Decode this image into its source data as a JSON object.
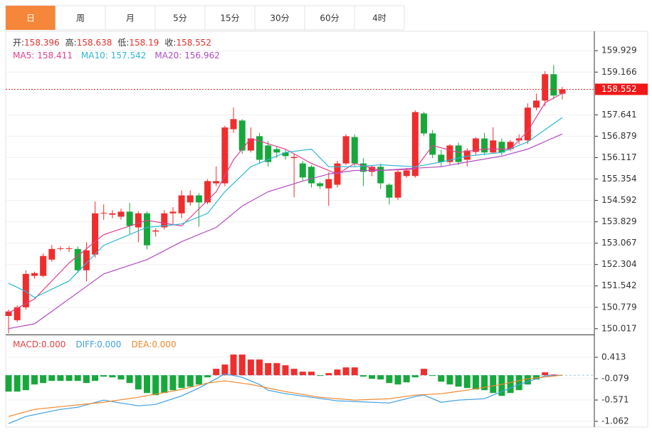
{
  "tabs": [
    "日",
    "周",
    "月",
    "5分",
    "15分",
    "30分",
    "60分",
    "4时"
  ],
  "active_tab": 0,
  "chart_data": [
    {
      "type": "candlestick",
      "ohlc_labels": [
        "开:",
        "高:",
        "低:",
        "收:"
      ],
      "open": [
        150.47,
        150.32,
        150.78,
        151.9,
        151.9,
        152.48,
        152.86,
        152.86,
        152.86,
        152.1,
        152.66,
        154.13,
        154.08,
        154.01,
        154.19,
        153.63,
        154.13,
        153.48,
        153.63,
        154.13,
        154.13,
        154.52,
        154.77,
        154.52,
        155.2,
        155.2,
        157.13,
        157.44,
        156.37,
        156.88,
        156.55,
        156.42,
        156.3,
        156.1,
        155.91,
        155.79,
        155.2,
        155.02,
        155.15,
        155.91,
        156.85,
        155.91,
        155.61,
        155.79,
        155.15,
        154.69,
        155.46,
        155.46,
        157.69,
        156.98,
        156.22,
        155.96,
        156.55,
        156.04,
        156.32,
        156.8,
        156.3,
        156.68,
        156.42,
        156.73,
        156.73,
        157.9,
        158.15,
        159.09,
        158.396
      ],
      "high": [
        150.7,
        150.85,
        152.1,
        152.05,
        152.7,
        153.0,
        152.95,
        152.95,
        152.95,
        153.1,
        154.55,
        154.45,
        154.25,
        154.3,
        154.5,
        154.2,
        154.2,
        153.6,
        154.25,
        154.35,
        154.95,
        154.95,
        154.85,
        155.35,
        155.8,
        157.25,
        157.9,
        157.49,
        157.2,
        157.0,
        156.7,
        156.5,
        156.4,
        156.25,
        156.0,
        155.85,
        155.25,
        155.6,
        156.0,
        156.95,
        156.95,
        156.1,
        155.85,
        155.9,
        155.2,
        155.7,
        155.75,
        157.8,
        157.75,
        157.1,
        156.4,
        156.6,
        156.65,
        156.45,
        156.85,
        157.0,
        157.2,
        156.8,
        156.75,
        156.95,
        158.05,
        158.4,
        159.2,
        159.42,
        158.638
      ],
      "low": [
        149.85,
        150.25,
        150.7,
        151.8,
        151.85,
        152.4,
        152.8,
        152.75,
        152.0,
        151.7,
        152.55,
        153.9,
        153.95,
        153.9,
        153.4,
        153.1,
        152.85,
        153.3,
        153.55,
        153.7,
        153.95,
        154.4,
        153.65,
        154.45,
        155.1,
        155.1,
        157.0,
        156.25,
        156.3,
        155.9,
        155.8,
        156.1,
        156.05,
        154.7,
        155.3,
        155.05,
        155.0,
        154.4,
        155.05,
        155.85,
        155.8,
        155.1,
        155.45,
        155.0,
        154.44,
        154.6,
        155.4,
        155.4,
        156.9,
        156.1,
        155.8,
        155.85,
        155.85,
        155.8,
        156.2,
        156.2,
        156.25,
        156.2,
        156.35,
        156.6,
        156.6,
        157.8,
        157.95,
        158.2,
        158.19
      ],
      "close": [
        150.63,
        150.78,
        151.97,
        152.0,
        152.61,
        152.86,
        152.88,
        152.88,
        152.1,
        152.81,
        154.13,
        154.15,
        154.13,
        154.19,
        153.68,
        154.13,
        152.99,
        153.52,
        154.13,
        154.19,
        154.77,
        154.77,
        154.52,
        155.28,
        155.28,
        157.19,
        157.49,
        156.37,
        156.8,
        156.04,
        155.96,
        156.3,
        156.17,
        156.14,
        155.41,
        155.2,
        155.1,
        155.35,
        155.91,
        156.88,
        155.91,
        155.61,
        155.79,
        155.2,
        154.69,
        155.61,
        155.66,
        157.74,
        156.98,
        156.22,
        155.96,
        156.55,
        155.96,
        156.37,
        156.8,
        156.3,
        156.73,
        156.3,
        156.68,
        156.8,
        157.9,
        158.15,
        159.09,
        158.33,
        158.552
      ],
      "up_color": "#ef2d2d",
      "down_color": "#17a83c",
      "series": [
        {
          "name": "MA5:",
          "color": "#e23f8e",
          "x": [
            0,
            3,
            7,
            11,
            16,
            20,
            24,
            26,
            28,
            32,
            35,
            38,
            40,
            43,
            47,
            49,
            52,
            55,
            58,
            60,
            62,
            64
          ],
          "values": [
            150.58,
            151.08,
            152.36,
            153.37,
            153.88,
            153.68,
            154.9,
            156.04,
            156.8,
            156.42,
            155.91,
            155.53,
            155.91,
            155.66,
            155.71,
            156.55,
            156.3,
            156.42,
            156.42,
            157.06,
            158.07,
            158.411
          ]
        },
        {
          "name": "MA10:",
          "color": "#2db7d6",
          "x": [
            0,
            2,
            3,
            7,
            11,
            16,
            20,
            23,
            25,
            28,
            32,
            35,
            37,
            40,
            43,
            47,
            50,
            53,
            57,
            60,
            64
          ],
          "values": [
            151.64,
            151.34,
            151.13,
            151.72,
            152.99,
            153.63,
            153.75,
            154.13,
            154.9,
            155.79,
            156.3,
            156.42,
            155.79,
            155.79,
            155.86,
            155.79,
            155.96,
            156.17,
            156.3,
            156.68,
            157.542
          ]
        },
        {
          "name": "MA20:",
          "color": "#b24cc4",
          "x": [
            0,
            3,
            7,
            11,
            16,
            20,
            24,
            27,
            30,
            34,
            37,
            40,
            43,
            47,
            50,
            53,
            57,
            60,
            64
          ],
          "values": [
            150.02,
            150.19,
            151.08,
            151.97,
            152.48,
            153.12,
            153.63,
            154.39,
            154.9,
            155.28,
            155.53,
            155.66,
            155.66,
            155.74,
            155.79,
            155.96,
            156.17,
            156.42,
            156.962
          ]
        }
      ],
      "ylim": [
        149.81,
        160.62
      ],
      "yticks": [
        150.017,
        150.779,
        151.542,
        152.304,
        153.067,
        153.829,
        154.592,
        155.354,
        156.117,
        156.879,
        157.641,
        159.166,
        159.929
      ],
      "grid": true,
      "last_price_line": true
    },
    {
      "type": "macd",
      "up_color": "#ef2d2d",
      "down_color": "#17a83c",
      "series": [
        {
          "name": "MACD:",
          "kind": "bar",
          "color": "#e84040",
          "legend_value": {
            "value": 0,
            "label": "0.000"
          },
          "values": [
            -0.377,
            -0.377,
            -0.344,
            -0.213,
            -0.18,
            -0.131,
            -0.131,
            -0.131,
            -0.131,
            -0.18,
            -0.131,
            -0.033,
            -0.049,
            -0.098,
            -0.18,
            -0.328,
            -0.41,
            -0.459,
            -0.41,
            -0.344,
            -0.295,
            -0.262,
            -0.213,
            -0.049,
            0.148,
            0.246,
            0.476,
            0.476,
            0.361,
            0.361,
            0.279,
            0.279,
            0.23,
            0.148,
            0.082,
            0.082,
            -0.016,
            0.049,
            0.131,
            0.18,
            0.18,
            -0.033,
            -0.082,
            -0.098,
            -0.18,
            -0.213,
            -0.164,
            -0.049,
            0.148,
            -0.016,
            -0.148,
            -0.213,
            -0.262,
            -0.295,
            -0.328,
            -0.344,
            -0.41,
            -0.476,
            -0.41,
            -0.344,
            -0.213,
            -0.098,
            0.066,
            0.016,
            0
          ]
        },
        {
          "name": "DIFF:",
          "kind": "line",
          "color": "#3d9fe6",
          "legend_value": {
            "value": 0,
            "label": "0.000"
          },
          "x": [
            0,
            2,
            6,
            8,
            11,
            13,
            15,
            17,
            20,
            22,
            24,
            25,
            27,
            29,
            30,
            32,
            35,
            38,
            42,
            44,
            47,
            48,
            50,
            52,
            55,
            57,
            59,
            62,
            64
          ],
          "values": [
            -1.115,
            -0.951,
            -0.787,
            -0.738,
            -0.574,
            -0.64,
            -0.705,
            -0.672,
            -0.476,
            -0.295,
            -0.082,
            0.033,
            -0.049,
            -0.213,
            -0.344,
            -0.426,
            -0.508,
            -0.59,
            -0.623,
            -0.64,
            -0.492,
            -0.459,
            -0.623,
            -0.574,
            -0.541,
            -0.377,
            -0.213,
            -0.016,
            0
          ]
        },
        {
          "name": "DEA:",
          "kind": "line",
          "color": "#f0862a",
          "legend_value": {
            "value": 0,
            "label": "0.000"
          },
          "x": [
            0,
            3,
            7,
            11,
            15,
            20,
            23,
            25,
            28,
            32,
            36,
            40,
            44,
            47,
            50,
            53,
            57,
            60,
            64
          ],
          "values": [
            -0.951,
            -0.787,
            -0.705,
            -0.623,
            -0.508,
            -0.328,
            -0.18,
            -0.131,
            -0.213,
            -0.377,
            -0.508,
            -0.574,
            -0.541,
            -0.459,
            -0.426,
            -0.344,
            -0.213,
            -0.082,
            0
          ]
        }
      ],
      "ylim": [
        -1.193,
        0.905
      ],
      "yticks": [
        -1.062,
        -0.571,
        -0.079,
        0.413
      ]
    }
  ]
}
